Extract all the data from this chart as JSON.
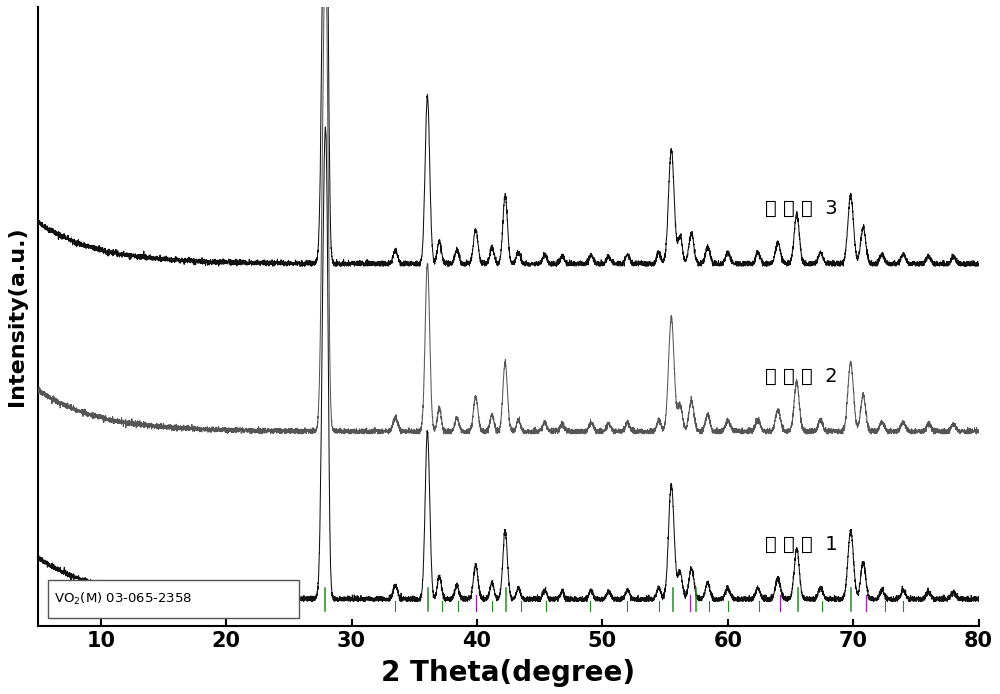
{
  "title": "",
  "xlabel": "2 Theta(degree)",
  "ylabel": "Intensity(a.u.)",
  "xlim": [
    5,
    80
  ],
  "x_ticks": [
    10,
    20,
    30,
    40,
    50,
    60,
    70,
    80
  ],
  "background_color": "#ffffff",
  "line_color_1": "#111111",
  "line_color_2": "#555555",
  "line_color_3": "#111111",
  "labels": [
    "实 施 例  1",
    "实 施 例  2",
    "实 施 例  3"
  ],
  "offsets": [
    0.0,
    2.2,
    4.4
  ],
  "noise_scale": 0.018,
  "xlabel_fontsize": 20,
  "ylabel_fontsize": 16,
  "tick_fontsize": 15,
  "label_fontsize": 14,
  "figsize": [
    10.0,
    6.94
  ],
  "ref_green_peaks": [
    27.85,
    36.1,
    42.3,
    55.6,
    57.5,
    65.6,
    69.8
  ],
  "ref_purple_peaks": [
    39.9,
    57.0,
    64.2,
    71.0
  ],
  "ref_small_peaks": [
    33.5,
    37.2,
    38.5,
    41.2,
    43.5,
    45.5,
    49.0,
    52.0,
    54.5,
    58.5,
    60.0,
    62.5,
    67.5,
    72.5,
    74.0
  ]
}
